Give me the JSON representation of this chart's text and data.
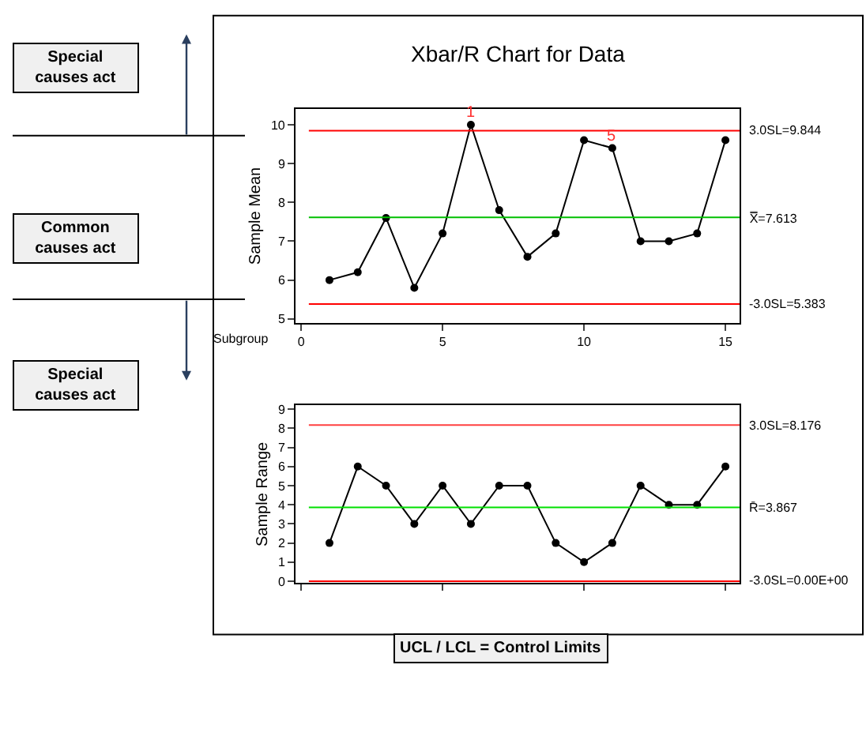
{
  "chart_data": [
    {
      "type": "line",
      "title": "Xbar/R Chart for Data",
      "ylabel": "Sample Mean",
      "xlabel": "Subgroup",
      "x": [
        1,
        2,
        3,
        4,
        5,
        6,
        7,
        8,
        9,
        10,
        11,
        12,
        13,
        14,
        15
      ],
      "series": [
        {
          "color": "#000000",
          "values": [
            6.0,
            6.2,
            7.6,
            5.8,
            7.2,
            10.0,
            7.8,
            6.6,
            7.2,
            9.6,
            9.4,
            7.0,
            7.0,
            7.2,
            9.6
          ]
        }
      ],
      "xlim": [
        -0.2,
        15.5
      ],
      "xticks": [
        0,
        5,
        10,
        15
      ],
      "ylim": [
        4.9,
        10.4
      ],
      "yticks": [
        5,
        6,
        7,
        8,
        9,
        10
      ],
      "ref_lines": [
        {
          "axis": "y",
          "value": 9.844,
          "label": "3.0SL=9.844",
          "color": "#ff0000"
        },
        {
          "axis": "y",
          "value": 7.613,
          "label": "X̿=7.613",
          "color": "#00c000"
        },
        {
          "axis": "y",
          "value": 5.383,
          "label": "-3.0SL=5.383",
          "color": "#ff0000"
        }
      ],
      "annotations": [
        {
          "text": "1",
          "x": 6,
          "y": 10.0
        },
        {
          "text": "5",
          "x": 11,
          "y": 9.4
        },
        "Special causes act",
        "Common causes act",
        "Special causes act",
        "UCL / LCL = Control Limits"
      ],
      "marker": "circle",
      "line_style": "solid"
    },
    {
      "type": "line",
      "ylabel": "Sample Range",
      "x": [
        1,
        2,
        3,
        4,
        5,
        6,
        7,
        8,
        9,
        10,
        11,
        12,
        13,
        14,
        15
      ],
      "series": [
        {
          "color": "#000000",
          "values": [
            2,
            6,
            5,
            3,
            5,
            3,
            5,
            5,
            2,
            1,
            2,
            5,
            4,
            4,
            6
          ]
        }
      ],
      "xlim": [
        -0.2,
        15.5
      ],
      "xticks": [
        {
          "value": 0,
          "label": null
        },
        {
          "value": 5,
          "label": null
        },
        {
          "value": 10,
          "label": null
        },
        {
          "value": 15,
          "label": null
        }
      ],
      "ylim": [
        -0.1,
        9.2
      ],
      "yticks": [
        0,
        1,
        2,
        3,
        4,
        5,
        6,
        7,
        8,
        9
      ],
      "ref_lines": [
        {
          "axis": "y",
          "value": 8.176,
          "label": "3.0SL=8.176",
          "color": "#ff4040"
        },
        {
          "axis": "y",
          "value": 3.867,
          "label": "R̄=3.867",
          "color": "#00e000"
        },
        {
          "axis": "y",
          "value": 0,
          "label": "-3.0SL=0.00E+00",
          "color": "#ff0000"
        }
      ],
      "tick_labels": "y",
      "marker": "circle",
      "line_style": "solid"
    }
  ]
}
